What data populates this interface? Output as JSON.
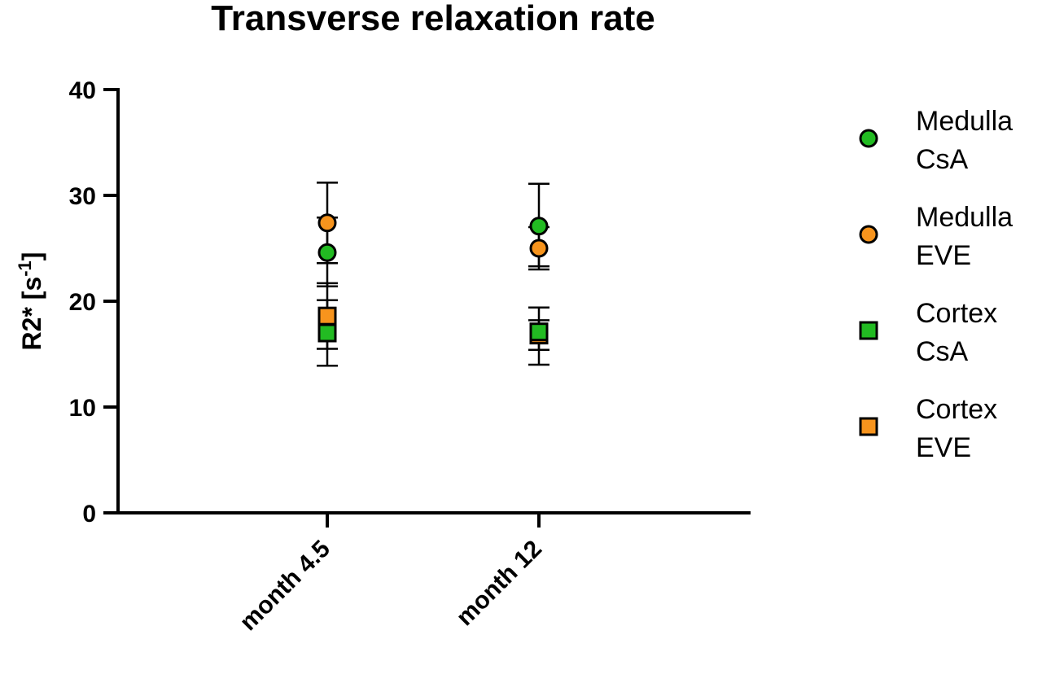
{
  "chart_data": {
    "type": "scatter",
    "title": "Transverse relaxation rate",
    "ylabel_main": "R2* [s",
    "ylabel_sup": "-1",
    "ylabel_close": "]",
    "xlabel": "",
    "categories": [
      "month 4.5",
      "month 12"
    ],
    "ylim": [
      0,
      40
    ],
    "yticks": [
      0,
      10,
      20,
      30,
      40
    ],
    "grid": false,
    "legend_position": "right",
    "series": [
      {
        "name_line1": "Medulla",
        "name_line2": "CsA",
        "marker": "circle",
        "color": "#22bb22",
        "values": [
          24.6,
          27.1
        ],
        "err_low": [
          21.4,
          23.3
        ],
        "err_high": [
          27.9,
          31.1
        ]
      },
      {
        "name_line1": "Medulla",
        "name_line2": "EVE",
        "marker": "circle",
        "color": "#f7941d",
        "values": [
          27.4,
          25.0
        ],
        "err_low": [
          23.6,
          23.0
        ],
        "err_high": [
          31.2,
          27.0
        ]
      },
      {
        "name_line1": "Cortex",
        "name_line2": "CsA",
        "marker": "square",
        "color": "#22bb22",
        "values": [
          17.0,
          17.1
        ],
        "err_low": [
          13.9,
          14.0
        ],
        "err_high": [
          20.1,
          19.4
        ]
      },
      {
        "name_line1": "Cortex",
        "name_line2": "EVE",
        "marker": "square",
        "color": "#f7941d",
        "values": [
          18.6,
          16.8
        ],
        "err_low": [
          15.5,
          15.4
        ],
        "err_high": [
          21.7,
          18.2
        ]
      }
    ]
  }
}
